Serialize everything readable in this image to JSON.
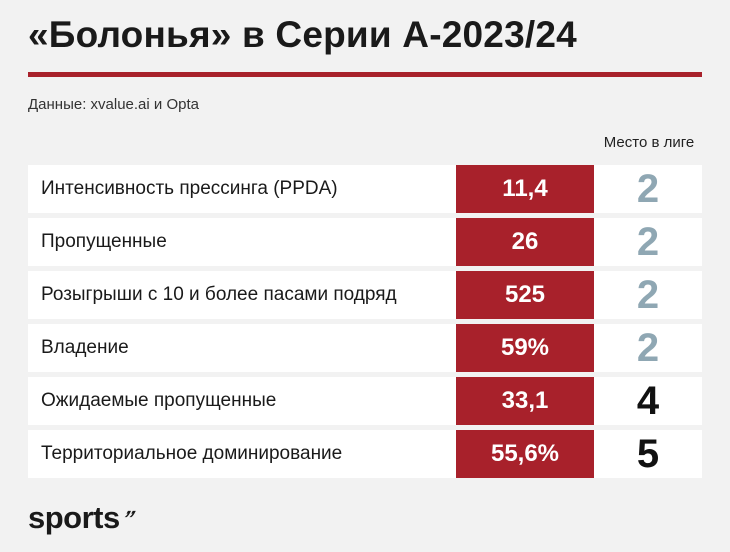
{
  "header": {
    "title": "«Болонья» в Серии А-2023/24",
    "source": "Данные: xvalue.ai и Opta",
    "rank_column_label": "Место в лиге"
  },
  "brand": {
    "logo_text": "sports",
    "logo_mark": "’’"
  },
  "colors": {
    "accent": "#a8212b",
    "rank_top": "#8fa7b3",
    "rank_other": "#111111",
    "background": "#f2f2f2"
  },
  "chart_data": {
    "type": "table",
    "title": "«Болонья» в Серии А-2023/24",
    "columns": [
      "",
      "",
      "Место в лиге"
    ],
    "rows": [
      {
        "metric": "Интенсивность прессинга (PPDA)",
        "value": "11,4",
        "rank": "2"
      },
      {
        "metric": "Пропущенные",
        "value": "26",
        "rank": "2"
      },
      {
        "metric": "Розыгрыши с 10 и более пасами подряд",
        "value": "525",
        "rank": "2"
      },
      {
        "metric": "Владение",
        "value": "59%",
        "rank": "2"
      },
      {
        "metric": "Ожидаемые пропущенные",
        "value": "33,1",
        "rank": "4"
      },
      {
        "metric": "Территориальное доминирование",
        "value": "55,6%",
        "rank": "5"
      }
    ]
  }
}
